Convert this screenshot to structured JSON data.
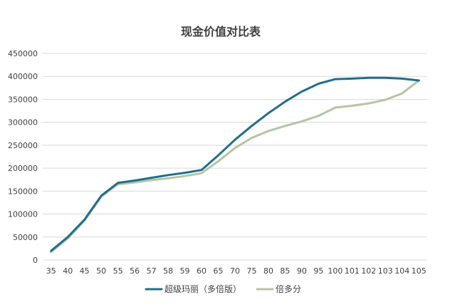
{
  "chart_data": {
    "type": "line",
    "title": "现金价值对比表",
    "xlabel": "",
    "ylabel": "",
    "categories": [
      "35",
      "40",
      "45",
      "50",
      "55",
      "56",
      "57",
      "58",
      "59",
      "60",
      "65",
      "70",
      "75",
      "80",
      "85",
      "90",
      "95",
      "100",
      "101",
      "102",
      "103",
      "104",
      "105"
    ],
    "ylim": [
      0,
      450000
    ],
    "yticks": [
      0,
      50000,
      100000,
      150000,
      200000,
      250000,
      300000,
      350000,
      400000,
      450000
    ],
    "ytick_labels": [
      "0",
      "50000",
      "100000",
      "150000",
      "200000",
      "250000",
      "300000",
      "350000",
      "400000",
      "450000"
    ],
    "grid": true,
    "legend_position": "bottom",
    "series": [
      {
        "name": "超级玛丽（多倍版）",
        "color": "#1f6f8b",
        "values": [
          20000,
          50000,
          88000,
          140000,
          168000,
          173000,
          179000,
          185000,
          190000,
          196000,
          228000,
          262000,
          292000,
          320000,
          345000,
          367000,
          384000,
          394000,
          395000,
          397000,
          397000,
          395000,
          391000
        ]
      },
      {
        "name": "倍多分",
        "color": "#b4c5a4",
        "values": [
          17000,
          47000,
          86000,
          138000,
          165000,
          169000,
          174000,
          178000,
          183000,
          189000,
          215000,
          244000,
          266000,
          281000,
          292000,
          302000,
          314000,
          332000,
          336000,
          341000,
          349000,
          363000,
          391000
        ]
      }
    ]
  }
}
